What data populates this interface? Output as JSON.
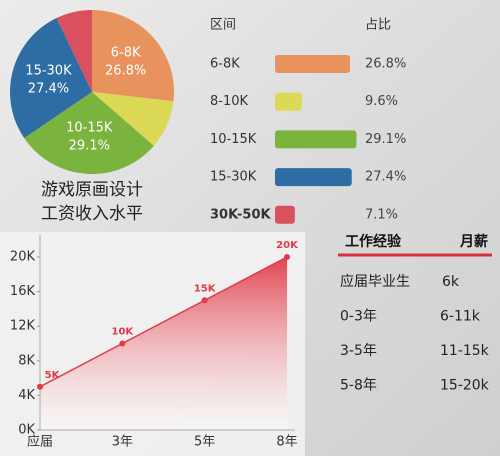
{
  "chart_data": [
    {
      "type": "pie",
      "title": [
        "游戏原画设计",
        "工资收入水平"
      ],
      "headers": [
        "区间",
        "占比"
      ],
      "categories": [
        "6-8K",
        "8-10K",
        "10-15K",
        "15-30K",
        "30K-50K"
      ],
      "values": [
        26.8,
        9.6,
        29.1,
        27.4,
        7.1
      ],
      "value_labels": [
        "26.8%",
        "9.6%",
        "29.1%",
        "27.4%",
        "7.1%"
      ],
      "slice_labels": [
        "6-8K",
        null,
        "10-15K",
        "15-30K",
        null
      ],
      "slice_value_labels": [
        "26.8%",
        null,
        "29.1%",
        "27.4%",
        null
      ],
      "colors": [
        "#e8935e",
        "#dcd957",
        "#7bb33f",
        "#2e6da4",
        "#d9505f"
      ]
    },
    {
      "type": "area",
      "categories": [
        "应届",
        "3年",
        "5年",
        "8年"
      ],
      "values": [
        5,
        10,
        15,
        20
      ],
      "value_labels": [
        "5K",
        "10K",
        "15K",
        "20K"
      ],
      "color": "#e03a48",
      "ylim": [
        0,
        20
      ],
      "yticks": [
        {
          "value": 0,
          "label": "0K"
        },
        {
          "value": 4,
          "label": "4K"
        },
        {
          "value": 8,
          "label": "8K"
        },
        {
          "value": 12,
          "label": "12K"
        },
        {
          "value": 16,
          "label": "16K"
        },
        {
          "value": 20,
          "label": "20K"
        }
      ]
    }
  ],
  "table": {
    "headers": [
      "工作经验",
      "月薪"
    ],
    "rows": [
      [
        "应届毕业生",
        "6k"
      ],
      [
        "0-3年",
        "6-11k"
      ],
      [
        "3-5年",
        "11-15k"
      ],
      [
        "5-8年",
        "15-20k"
      ]
    ]
  }
}
